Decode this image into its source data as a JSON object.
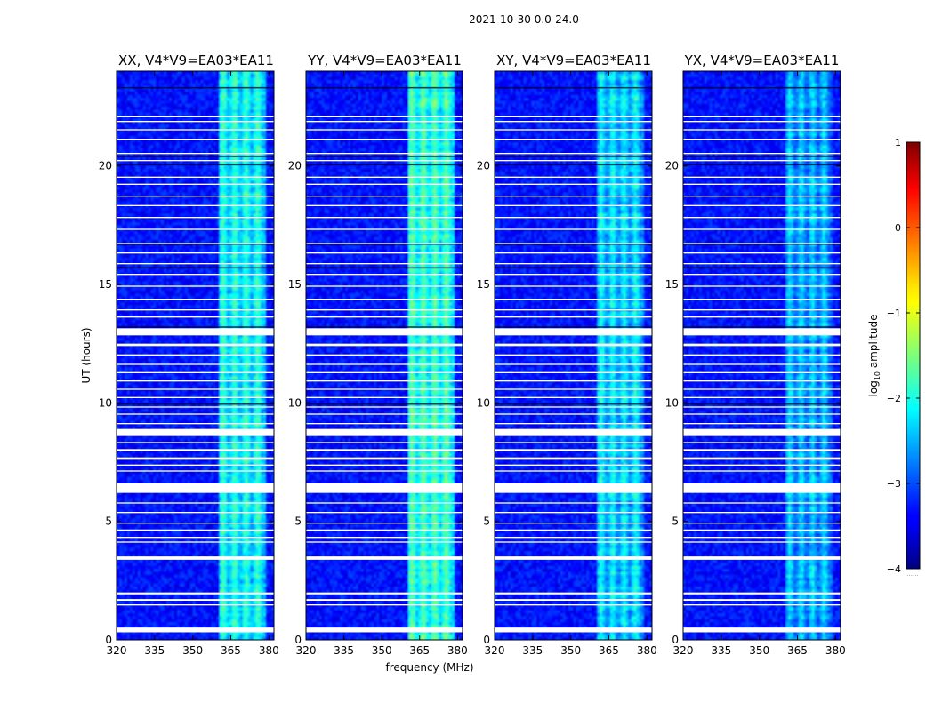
{
  "figure_title": "2021-10-30 0.0-24.0",
  "colormap": "jet",
  "chart_data": {
    "type": "heatmap",
    "figure_title": "2021-10-30 0.0-24.0",
    "x_label": "frequency (MHz)",
    "y_label": "UT (hours)",
    "x_range": [
      320,
      382
    ],
    "y_range": [
      0,
      24
    ],
    "x_ticks": [
      320,
      335,
      350,
      365,
      380
    ],
    "y_ticks": [
      0,
      5,
      10,
      15,
      20
    ],
    "colorbar": {
      "label_prefix": "log",
      "label_subscript": "10",
      "label_suffix": " amplitude",
      "range": [
        -4,
        1
      ],
      "ticks": [
        1,
        0,
        -1,
        -2,
        -3,
        -4
      ],
      "tick_labels": [
        "1",
        "0",
        "−1",
        "−2",
        "−3",
        "−4"
      ],
      "footer": "......"
    },
    "panels": [
      {
        "title": "XX, V4*V9=EA03*EA11",
        "band_peak": -1.8
      },
      {
        "title": "YY, V4*V9=EA03*EA11",
        "band_peak": -1.6
      },
      {
        "title": "XY, V4*V9=EA03*EA11",
        "band_peak": -2.0
      },
      {
        "title": "YX, V4*V9=EA03*EA11",
        "band_peak": -2.2
      }
    ],
    "background_level": -3.3,
    "rfi_band_mhz": [
      360.5,
      379
    ],
    "rfi_channels_mhz": [
      362,
      366.5,
      371,
      375.5
    ],
    "flagged_ut_hours": [
      [
        0.32,
        0.52
      ],
      [
        1.45,
        1.5
      ],
      [
        1.65,
        1.72
      ],
      [
        1.92,
        2.0
      ],
      [
        3.38,
        3.52
      ],
      [
        4.1,
        4.15
      ],
      [
        4.3,
        4.35
      ],
      [
        4.6,
        4.66
      ],
      [
        4.9,
        4.95
      ],
      [
        5.35,
        5.4
      ],
      [
        5.75,
        5.8
      ],
      [
        6.2,
        6.6
      ],
      [
        7.1,
        7.15
      ],
      [
        7.35,
        7.4
      ],
      [
        7.6,
        7.7
      ],
      [
        7.95,
        8.05
      ],
      [
        8.3,
        8.35
      ],
      [
        8.6,
        8.9
      ],
      [
        9.1,
        9.15
      ],
      [
        9.5,
        9.55
      ],
      [
        9.8,
        9.85
      ],
      [
        10.2,
        10.25
      ],
      [
        10.55,
        10.6
      ],
      [
        10.9,
        10.95
      ],
      [
        11.25,
        11.3
      ],
      [
        11.6,
        11.65
      ],
      [
        12.0,
        12.05
      ],
      [
        12.4,
        12.5
      ],
      [
        12.85,
        13.15
      ],
      [
        13.6,
        13.65
      ],
      [
        13.9,
        13.95
      ],
      [
        14.35,
        14.4
      ],
      [
        14.9,
        14.95
      ],
      [
        15.4,
        15.45
      ],
      [
        15.85,
        15.9
      ],
      [
        16.3,
        16.35
      ],
      [
        16.7,
        16.75
      ],
      [
        17.3,
        17.35
      ],
      [
        17.8,
        17.85
      ],
      [
        18.3,
        18.35
      ],
      [
        18.7,
        18.75
      ],
      [
        19.2,
        19.25
      ],
      [
        19.5,
        19.55
      ],
      [
        20.2,
        20.25
      ],
      [
        20.5,
        20.55
      ],
      [
        21.1,
        21.15
      ],
      [
        21.5,
        21.55
      ],
      [
        21.85,
        21.9
      ],
      [
        22.05,
        22.1
      ]
    ],
    "dark_ut_hours": [
      9.95,
      13.2,
      15.7,
      16.7,
      20.05,
      20.4,
      23.3
    ]
  }
}
